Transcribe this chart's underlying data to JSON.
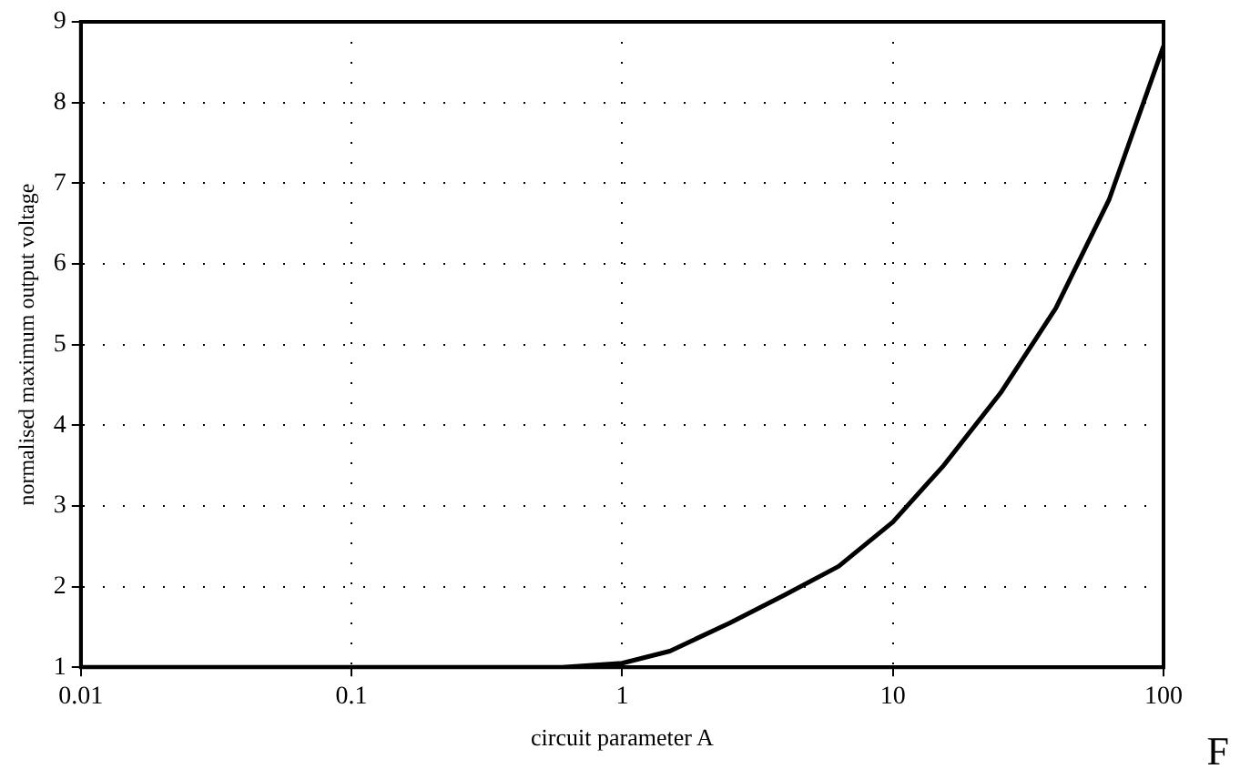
{
  "chart_data": {
    "type": "line",
    "xlabel": "circuit parameter A",
    "ylabel": "normalised maximum output voltage",
    "annotations": [
      "F"
    ],
    "x": [
      0.01,
      0.1,
      0.6,
      1,
      1.5,
      2.5,
      4,
      6.3,
      10,
      15.4,
      25,
      40,
      63,
      100
    ],
    "series": [
      {
        "color": "#000000",
        "values": [
          1,
          1,
          1,
          1.05,
          1.2,
          1.55,
          1.9,
          2.25,
          2.8,
          3.5,
          4.4,
          5.45,
          6.8,
          8.7
        ]
      }
    ],
    "log": "x",
    "xlim": [
      0.01,
      100
    ],
    "xticks": [
      0.01,
      0.1,
      1,
      10,
      100
    ],
    "ylim": [
      1,
      9
    ],
    "yticks": [
      1,
      2,
      3,
      4,
      5,
      6,
      7,
      8,
      9
    ],
    "grid": true,
    "legend": false,
    "marker": "none",
    "line_style": "solid"
  }
}
